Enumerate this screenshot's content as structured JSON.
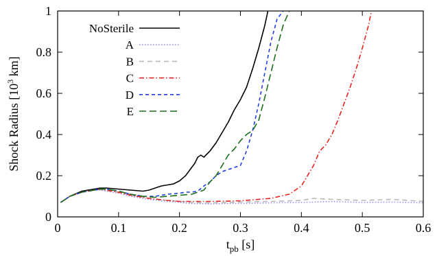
{
  "chart_data": {
    "type": "line",
    "title": "",
    "xlabel": "t",
    "xlabel_sub": "pb",
    "xlabel_unit": " [s]",
    "ylabel": "Shock Radius [10",
    "ylabel_sup": "3",
    "ylabel_unit": " km]",
    "xlim": [
      0,
      0.6
    ],
    "ylim": [
      0,
      1
    ],
    "xticks": [
      "0",
      "0.1",
      "0.2",
      "0.3",
      "0.4",
      "0.5",
      "0.6"
    ],
    "yticks": [
      "0",
      "0.2",
      "0.4",
      "0.6",
      "0.8",
      "1"
    ],
    "grid": false,
    "legend_position": "top-left",
    "series": [
      {
        "name": "NoSterile",
        "color": "#000000",
        "dash": "solid",
        "x": [
          0.005,
          0.02,
          0.04,
          0.06,
          0.07,
          0.08,
          0.1,
          0.12,
          0.14,
          0.15,
          0.16,
          0.17,
          0.18,
          0.19,
          0.2,
          0.21,
          0.22,
          0.225,
          0.23,
          0.235,
          0.24,
          0.25,
          0.26,
          0.27,
          0.28,
          0.29,
          0.3,
          0.31,
          0.32,
          0.33,
          0.34,
          0.345
        ],
        "y": [
          0.07,
          0.1,
          0.125,
          0.135,
          0.14,
          0.14,
          0.135,
          0.13,
          0.125,
          0.13,
          0.14,
          0.15,
          0.155,
          0.16,
          0.175,
          0.2,
          0.24,
          0.26,
          0.29,
          0.3,
          0.29,
          0.32,
          0.36,
          0.41,
          0.46,
          0.52,
          0.57,
          0.63,
          0.72,
          0.82,
          0.93,
          1.0
        ]
      },
      {
        "name": "A",
        "color": "#9a86f0",
        "dash": "dotted",
        "x": [
          0.005,
          0.02,
          0.04,
          0.06,
          0.07,
          0.08,
          0.1,
          0.12,
          0.15,
          0.18,
          0.2,
          0.22,
          0.25,
          0.28,
          0.3,
          0.35,
          0.4,
          0.45,
          0.5,
          0.55,
          0.6
        ],
        "y": [
          0.07,
          0.1,
          0.12,
          0.13,
          0.13,
          0.125,
          0.115,
          0.1,
          0.085,
          0.075,
          0.07,
          0.065,
          0.063,
          0.065,
          0.065,
          0.068,
          0.07,
          0.075,
          0.07,
          0.072,
          0.068
        ]
      },
      {
        "name": "B",
        "color": "#b8b8b8",
        "dash": "dashed",
        "x": [
          0.005,
          0.02,
          0.04,
          0.06,
          0.07,
          0.08,
          0.1,
          0.12,
          0.15,
          0.18,
          0.2,
          0.22,
          0.25,
          0.28,
          0.3,
          0.35,
          0.4,
          0.42,
          0.45,
          0.5,
          0.55,
          0.6
        ],
        "y": [
          0.07,
          0.1,
          0.12,
          0.13,
          0.132,
          0.128,
          0.118,
          0.105,
          0.09,
          0.08,
          0.075,
          0.07,
          0.068,
          0.07,
          0.072,
          0.075,
          0.08,
          0.09,
          0.085,
          0.08,
          0.085,
          0.075
        ]
      },
      {
        "name": "C",
        "color": "#e8231f",
        "dash": "dashdot",
        "x": [
          0.005,
          0.02,
          0.04,
          0.06,
          0.07,
          0.08,
          0.1,
          0.12,
          0.15,
          0.18,
          0.2,
          0.25,
          0.3,
          0.35,
          0.38,
          0.4,
          0.41,
          0.42,
          0.43,
          0.44,
          0.45,
          0.46,
          0.47,
          0.48,
          0.49,
          0.5,
          0.51,
          0.515
        ],
        "y": [
          0.07,
          0.1,
          0.12,
          0.13,
          0.135,
          0.13,
          0.12,
          0.105,
          0.09,
          0.08,
          0.075,
          0.075,
          0.078,
          0.09,
          0.11,
          0.15,
          0.2,
          0.25,
          0.32,
          0.35,
          0.4,
          0.47,
          0.55,
          0.63,
          0.72,
          0.82,
          0.93,
          1.0
        ]
      },
      {
        "name": "D",
        "color": "#1f3ee0",
        "dash": "shortdash",
        "x": [
          0.005,
          0.02,
          0.04,
          0.06,
          0.07,
          0.08,
          0.1,
          0.12,
          0.14,
          0.16,
          0.18,
          0.2,
          0.21,
          0.22,
          0.23,
          0.24,
          0.25,
          0.26,
          0.27,
          0.28,
          0.29,
          0.3,
          0.31,
          0.32,
          0.33,
          0.34,
          0.35,
          0.36,
          0.37
        ],
        "y": [
          0.07,
          0.1,
          0.12,
          0.13,
          0.135,
          0.135,
          0.125,
          0.11,
          0.1,
          0.1,
          0.11,
          0.115,
          0.12,
          0.12,
          0.125,
          0.15,
          0.17,
          0.2,
          0.22,
          0.23,
          0.24,
          0.25,
          0.32,
          0.42,
          0.55,
          0.7,
          0.85,
          0.96,
          1.0
        ]
      },
      {
        "name": "E",
        "color": "#1b6e1b",
        "dash": "longdash",
        "x": [
          0.005,
          0.02,
          0.04,
          0.06,
          0.07,
          0.08,
          0.1,
          0.12,
          0.14,
          0.16,
          0.18,
          0.2,
          0.22,
          0.23,
          0.24,
          0.25,
          0.26,
          0.27,
          0.28,
          0.29,
          0.3,
          0.31,
          0.32,
          0.33,
          0.34,
          0.35,
          0.36,
          0.37,
          0.38
        ],
        "y": [
          0.07,
          0.1,
          0.12,
          0.13,
          0.135,
          0.135,
          0.125,
          0.11,
          0.1,
          0.095,
          0.1,
          0.105,
          0.11,
          0.12,
          0.13,
          0.17,
          0.2,
          0.25,
          0.3,
          0.33,
          0.37,
          0.4,
          0.42,
          0.47,
          0.58,
          0.7,
          0.82,
          0.93,
          1.0
        ]
      }
    ]
  }
}
